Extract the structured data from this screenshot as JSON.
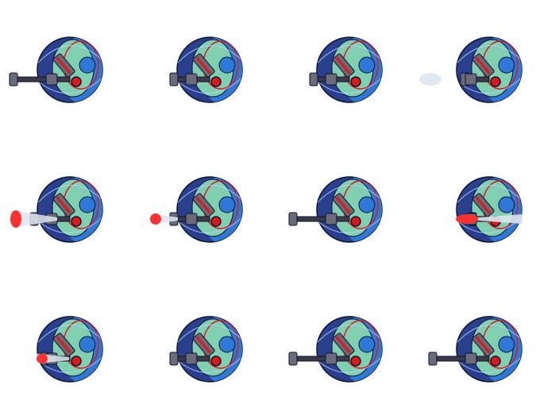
{
  "sprite_sheet": {
    "subject": "orb-turret-robot",
    "columns": 4,
    "rows": 3,
    "palette": {
      "shell_dark": "#2b3f8f",
      "shell_mid": "#2f78d6",
      "panel_green": "#7fcfb0",
      "outline": "#0c1430",
      "highlight": "#bcd6ff",
      "metal": "#6a6a78",
      "metal_dark": "#3a3a48",
      "gun_red": "#e01818",
      "muzzle_red": "#ff3030",
      "smoke": "#dfe6ee"
    },
    "frames": [
      {
        "state": "aim-extended"
      },
      {
        "state": "recoil"
      },
      {
        "state": "recoil"
      },
      {
        "state": "fire-small"
      },
      {
        "state": "fire-blast"
      },
      {
        "state": "fire-medium"
      },
      {
        "state": "aim-extended"
      },
      {
        "state": "fire-forward-beam"
      },
      {
        "state": "fire-medium"
      },
      {
        "state": "recoil"
      },
      {
        "state": "aim-extended"
      },
      {
        "state": "aim-extended"
      }
    ]
  }
}
